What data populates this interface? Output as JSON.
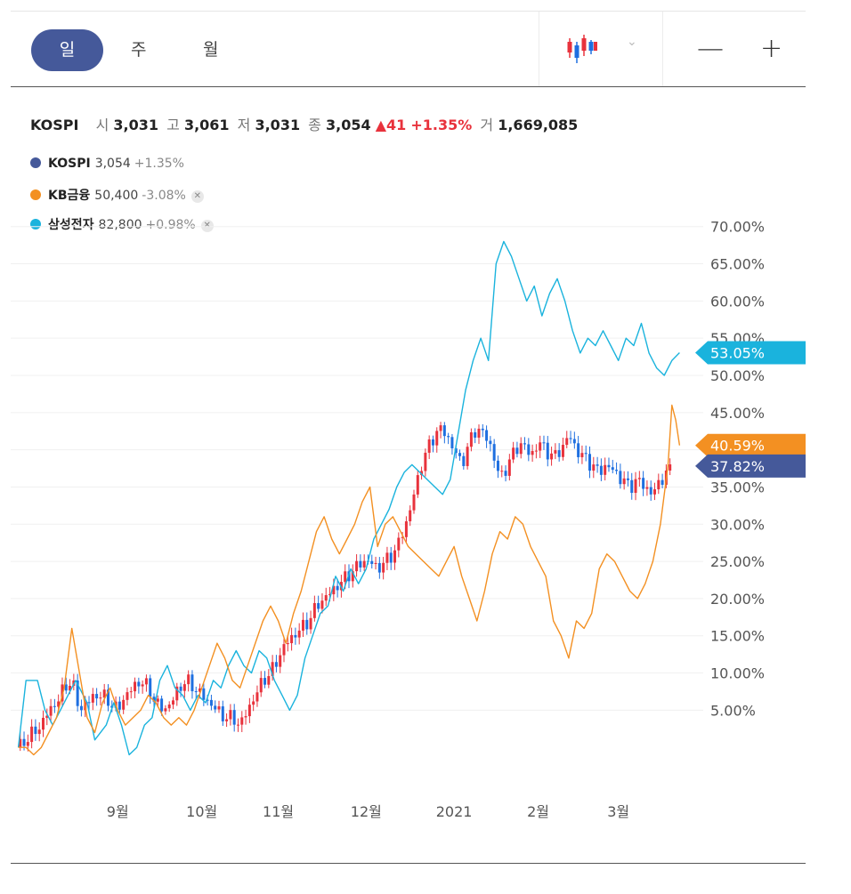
{
  "toolbar": {
    "tabs": [
      {
        "label": "일",
        "active": true
      },
      {
        "label": "주",
        "active": false
      },
      {
        "label": "월",
        "active": false
      }
    ],
    "chart_type_icon": "candlestick-icon",
    "dropdown_icon": "chevron-down-icon",
    "zoom_out_label": "—",
    "zoom_in_label": "+"
  },
  "quote": {
    "name": "KOSPI",
    "open_label": "시",
    "open": "3,031",
    "high_label": "고",
    "high": "3,061",
    "low_label": "저",
    "low": "3,031",
    "close_label": "종",
    "close": "3,054",
    "change": "▲41",
    "change_pct": "+1.35%",
    "volume_label": "거",
    "volume": "1,669,085"
  },
  "legend": [
    {
      "name": "KOSPI",
      "value": "3,054",
      "change": "+1.35%",
      "color": "#45599a",
      "removable": false
    },
    {
      "name": "KB금융",
      "value": "50,400",
      "change": "-3.08%",
      "color": "#f39022",
      "removable": true
    },
    {
      "name": "삼성전자",
      "value": "82,800",
      "change": "+0.98%",
      "color": "#1ab3dd",
      "removable": true
    }
  ],
  "colors": {
    "up": "#e8323c",
    "down": "#1e6fe0",
    "kospi": "#45599a",
    "kb": "#f39022",
    "samsung": "#1ab3dd"
  },
  "chart_data": {
    "type": "line",
    "y_unit": "%",
    "yticks": [
      "5.00%",
      "10.00%",
      "15.00%",
      "20.00%",
      "25.00%",
      "30.00%",
      "35.00%",
      "40.00%",
      "45.00%",
      "50.00%",
      "55.00%",
      "60.00%",
      "65.00%",
      "70.00%"
    ],
    "ylim": [
      -5,
      72
    ],
    "xticks": [
      {
        "label": "9월",
        "t": 26
      },
      {
        "label": "10월",
        "t": 48
      },
      {
        "label": "11월",
        "t": 68
      },
      {
        "label": "12월",
        "t": 91
      },
      {
        "label": "2021",
        "t": 114
      },
      {
        "label": "2월",
        "t": 136
      },
      {
        "label": "3월",
        "t": 157
      }
    ],
    "xlim": [
      -2,
      175
    ],
    "end_labels": [
      {
        "text": "53.05%",
        "value": 53.05,
        "series": "삼성전자",
        "color": "#1ab3dd"
      },
      {
        "text": "40.59%",
        "value": 40.59,
        "series": "KB금융",
        "color": "#f39022"
      },
      {
        "text": "37.82%",
        "value": 37.82,
        "series": "KOSPI",
        "color": "#45599a"
      }
    ],
    "series": [
      {
        "name": "삼성전자",
        "color": "#1ab3dd",
        "points": [
          [
            0,
            0
          ],
          [
            2,
            9
          ],
          [
            5,
            9
          ],
          [
            7,
            5
          ],
          [
            9,
            3
          ],
          [
            11,
            5
          ],
          [
            13,
            7
          ],
          [
            15,
            9
          ],
          [
            18,
            6
          ],
          [
            20,
            1
          ],
          [
            23,
            3
          ],
          [
            25,
            6
          ],
          [
            27,
            3
          ],
          [
            29,
            -1
          ],
          [
            31,
            0
          ],
          [
            33,
            3
          ],
          [
            35,
            4
          ],
          [
            37,
            9
          ],
          [
            39,
            11
          ],
          [
            41,
            8
          ],
          [
            43,
            7
          ],
          [
            45,
            5
          ],
          [
            47,
            7
          ],
          [
            49,
            6
          ],
          [
            51,
            9
          ],
          [
            53,
            8
          ],
          [
            55,
            11
          ],
          [
            57,
            13
          ],
          [
            59,
            11
          ],
          [
            61,
            10
          ],
          [
            63,
            13
          ],
          [
            65,
            12
          ],
          [
            67,
            9
          ],
          [
            69,
            7
          ],
          [
            71,
            5
          ],
          [
            73,
            7
          ],
          [
            75,
            12
          ],
          [
            77,
            15
          ],
          [
            79,
            18
          ],
          [
            81,
            19
          ],
          [
            83,
            23
          ],
          [
            85,
            21
          ],
          [
            87,
            24
          ],
          [
            89,
            22
          ],
          [
            91,
            24
          ],
          [
            93,
            28
          ],
          [
            95,
            30
          ],
          [
            97,
            32
          ],
          [
            99,
            35
          ],
          [
            101,
            37
          ],
          [
            103,
            38
          ],
          [
            105,
            37
          ],
          [
            107,
            36
          ],
          [
            109,
            35
          ],
          [
            111,
            34
          ],
          [
            113,
            36
          ],
          [
            115,
            42
          ],
          [
            117,
            48
          ],
          [
            119,
            52
          ],
          [
            121,
            55
          ],
          [
            123,
            52
          ],
          [
            125,
            65
          ],
          [
            127,
            68
          ],
          [
            129,
            66
          ],
          [
            131,
            63
          ],
          [
            133,
            60
          ],
          [
            135,
            62
          ],
          [
            137,
            58
          ],
          [
            139,
            61
          ],
          [
            141,
            63
          ],
          [
            143,
            60
          ],
          [
            145,
            56
          ],
          [
            147,
            53
          ],
          [
            149,
            55
          ],
          [
            151,
            54
          ],
          [
            153,
            56
          ],
          [
            155,
            54
          ],
          [
            157,
            52
          ],
          [
            159,
            55
          ],
          [
            161,
            54
          ],
          [
            163,
            57
          ],
          [
            165,
            53
          ],
          [
            167,
            51
          ],
          [
            169,
            50
          ],
          [
            171,
            52
          ],
          [
            173,
            53.05
          ]
        ]
      },
      {
        "name": "KB금융",
        "color": "#f39022",
        "points": [
          [
            0,
            0
          ],
          [
            2,
            0
          ],
          [
            4,
            -1
          ],
          [
            6,
            0
          ],
          [
            8,
            2
          ],
          [
            10,
            4
          ],
          [
            12,
            8
          ],
          [
            14,
            16
          ],
          [
            16,
            10
          ],
          [
            18,
            4
          ],
          [
            20,
            2
          ],
          [
            22,
            6
          ],
          [
            24,
            8
          ],
          [
            26,
            5
          ],
          [
            28,
            3
          ],
          [
            30,
            4
          ],
          [
            32,
            5
          ],
          [
            34,
            7
          ],
          [
            36,
            6
          ],
          [
            38,
            4
          ],
          [
            40,
            3
          ],
          [
            42,
            4
          ],
          [
            44,
            3
          ],
          [
            46,
            5
          ],
          [
            48,
            8
          ],
          [
            50,
            11
          ],
          [
            52,
            14
          ],
          [
            54,
            12
          ],
          [
            56,
            9
          ],
          [
            58,
            8
          ],
          [
            60,
            11
          ],
          [
            62,
            14
          ],
          [
            64,
            17
          ],
          [
            66,
            19
          ],
          [
            68,
            17
          ],
          [
            70,
            14
          ],
          [
            72,
            18
          ],
          [
            74,
            21
          ],
          [
            76,
            25
          ],
          [
            78,
            29
          ],
          [
            80,
            31
          ],
          [
            82,
            28
          ],
          [
            84,
            26
          ],
          [
            86,
            28
          ],
          [
            88,
            30
          ],
          [
            90,
            33
          ],
          [
            92,
            35
          ],
          [
            94,
            27
          ],
          [
            96,
            30
          ],
          [
            98,
            31
          ],
          [
            100,
            29
          ],
          [
            102,
            27
          ],
          [
            104,
            26
          ],
          [
            106,
            25
          ],
          [
            108,
            24
          ],
          [
            110,
            23
          ],
          [
            112,
            25
          ],
          [
            114,
            27
          ],
          [
            116,
            23
          ],
          [
            118,
            20
          ],
          [
            120,
            17
          ],
          [
            122,
            21
          ],
          [
            124,
            26
          ],
          [
            126,
            29
          ],
          [
            128,
            28
          ],
          [
            130,
            31
          ],
          [
            132,
            30
          ],
          [
            134,
            27
          ],
          [
            136,
            25
          ],
          [
            138,
            23
          ],
          [
            140,
            17
          ],
          [
            142,
            15
          ],
          [
            144,
            12
          ],
          [
            146,
            17
          ],
          [
            148,
            16
          ],
          [
            150,
            18
          ],
          [
            152,
            24
          ],
          [
            154,
            26
          ],
          [
            156,
            25
          ],
          [
            158,
            23
          ],
          [
            160,
            21
          ],
          [
            162,
            20
          ],
          [
            164,
            22
          ],
          [
            166,
            25
          ],
          [
            168,
            30
          ],
          [
            170,
            38
          ],
          [
            171,
            46
          ],
          [
            172,
            44
          ],
          [
            173,
            40.59
          ]
        ]
      },
      {
        "name": "KOSPI",
        "color": "#45599a",
        "points": [
          [
            0,
            0
          ],
          [
            2,
            1
          ],
          [
            4,
            2
          ],
          [
            6,
            3
          ],
          [
            8,
            5
          ],
          [
            10,
            6
          ],
          [
            12,
            8
          ],
          [
            14,
            9
          ],
          [
            16,
            5
          ],
          [
            18,
            6
          ],
          [
            20,
            7
          ],
          [
            22,
            7
          ],
          [
            24,
            6
          ],
          [
            26,
            5
          ],
          [
            28,
            7
          ],
          [
            30,
            8
          ],
          [
            32,
            9
          ],
          [
            34,
            8
          ],
          [
            36,
            6
          ],
          [
            38,
            5
          ],
          [
            40,
            6
          ],
          [
            42,
            8
          ],
          [
            44,
            9
          ],
          [
            46,
            8
          ],
          [
            48,
            7
          ],
          [
            50,
            6
          ],
          [
            52,
            5
          ],
          [
            54,
            4
          ],
          [
            56,
            4
          ],
          [
            58,
            3
          ],
          [
            60,
            5
          ],
          [
            62,
            7
          ],
          [
            64,
            9
          ],
          [
            66,
            10
          ],
          [
            68,
            12
          ],
          [
            70,
            14
          ],
          [
            72,
            15
          ],
          [
            74,
            16
          ],
          [
            76,
            17
          ],
          [
            78,
            19
          ],
          [
            80,
            20
          ],
          [
            82,
            21
          ],
          [
            84,
            22
          ],
          [
            86,
            23
          ],
          [
            88,
            24
          ],
          [
            90,
            25
          ],
          [
            92,
            25
          ],
          [
            94,
            24
          ],
          [
            96,
            25
          ],
          [
            98,
            26
          ],
          [
            100,
            28
          ],
          [
            102,
            31
          ],
          [
            104,
            35
          ],
          [
            106,
            39
          ],
          [
            108,
            41
          ],
          [
            110,
            43
          ],
          [
            112,
            42
          ],
          [
            114,
            40
          ],
          [
            116,
            38
          ],
          [
            118,
            41
          ],
          [
            120,
            43
          ],
          [
            122,
            42
          ],
          [
            124,
            40
          ],
          [
            126,
            36
          ],
          [
            128,
            38
          ],
          [
            130,
            40
          ],
          [
            132,
            41
          ],
          [
            134,
            39
          ],
          [
            136,
            41
          ],
          [
            138,
            40
          ],
          [
            140,
            39
          ],
          [
            142,
            40
          ],
          [
            144,
            42
          ],
          [
            146,
            40
          ],
          [
            148,
            39
          ],
          [
            150,
            38
          ],
          [
            152,
            37
          ],
          [
            154,
            38
          ],
          [
            156,
            37
          ],
          [
            158,
            36
          ],
          [
            160,
            35
          ],
          [
            162,
            36
          ],
          [
            164,
            35
          ],
          [
            166,
            34
          ],
          [
            168,
            36
          ],
          [
            170,
            37
          ],
          [
            171,
            37.82
          ]
        ]
      }
    ]
  }
}
